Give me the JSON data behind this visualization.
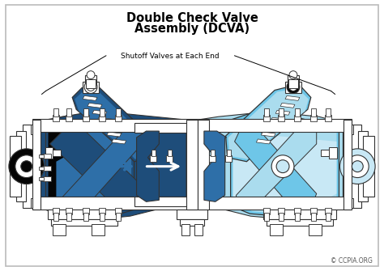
{
  "title_line1": "Double Check Valve",
  "title_line2": "Assembly (DCVA)",
  "label_shutoff": "Shutoff Valves at Each End",
  "copyright": "© CCPIA.ORG",
  "bg_color": "#ffffff",
  "dark_blue": "#1e4d7a",
  "mid_blue": "#2e6fa8",
  "light_blue": "#6ec6e8",
  "very_light_blue": "#aadcee",
  "pale_blue": "#c8e8f5",
  "black": "#050505",
  "white": "#ffffff",
  "gray": "#888888",
  "light_gray": "#cccccc",
  "outline_color": "#333333"
}
